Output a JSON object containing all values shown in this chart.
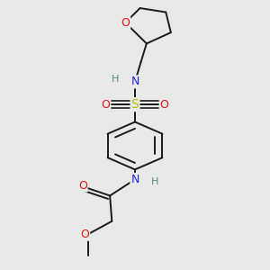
{
  "bg_color": "#e8eae8",
  "bond_color": "#1a1a1a",
  "bond_width": 1.4,
  "atom_colors": {
    "O": "#ee1111",
    "N": "#2222ee",
    "S": "#bbbb00",
    "H": "#558888",
    "C": "#1a1a1a"
  },
  "font_size": 8.5,
  "fig_width": 3.0,
  "fig_height": 3.0,
  "dpi": 100,
  "xlim": [
    0.15,
    0.85
  ],
  "ylim": [
    0.04,
    0.97
  ]
}
